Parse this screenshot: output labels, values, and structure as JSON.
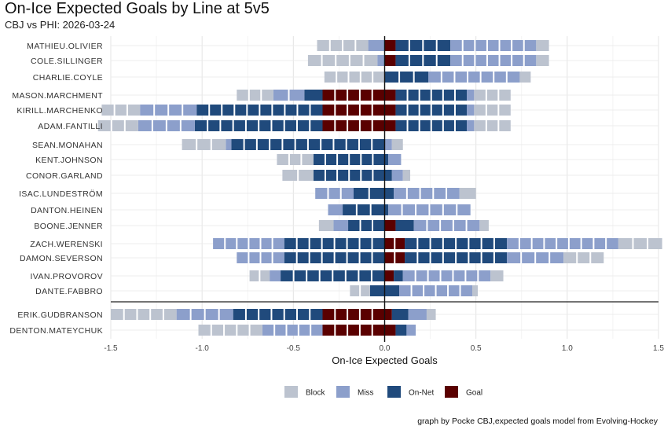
{
  "title": "On-Ice Expected Goals by Line at 5v5",
  "subtitle": "CBJ vs PHI: 2026-03-24",
  "caption": "graph by Pocke CBJ,expected goals model from Evolving-Hockey",
  "colors": {
    "Block": "#bcc3cf",
    "Miss": "#8c9fcb",
    "On-Net": "#204a7c",
    "Goal": "#5a0000"
  },
  "chart_data": {
    "type": "bar",
    "orientation": "horizontal",
    "stacked": true,
    "xlabel": "On-Ice Expected Goals",
    "xlim": [
      -1.5,
      1.5
    ],
    "xticks": [
      -1.5,
      -1.0,
      -0.5,
      0.0,
      0.5,
      1.0,
      1.5
    ],
    "xtick_labels": [
      "-1.5",
      "-1.0",
      "-0.5",
      "0.0",
      "0.5",
      "1.0",
      "1.5"
    ],
    "grid": true,
    "legend": {
      "position": "bottom",
      "entries": [
        "Block",
        "Miss",
        "On-Net",
        "Goal"
      ]
    },
    "players": [
      {
        "name": "MATHIEU.OLIVIER",
        "line": 1,
        "against": {
          "Goal": 0,
          "On-Net": 0,
          "Miss": 0.09,
          "Block": 0.28
        },
        "for": {
          "Goal": 0.06,
          "On-Net": 0.3,
          "Miss": 0.47,
          "Block": 0.07
        }
      },
      {
        "name": "COLE.SILLINGER",
        "line": 1,
        "against": {
          "Goal": 0,
          "On-Net": 0,
          "Miss": 0.04,
          "Block": 0.38
        },
        "for": {
          "Goal": 0.06,
          "On-Net": 0.3,
          "Miss": 0.47,
          "Block": 0.07
        }
      },
      {
        "name": "CHARLIE.COYLE",
        "line": 1,
        "against": {
          "Goal": 0,
          "On-Net": 0,
          "Miss": 0,
          "Block": 0.33
        },
        "for": {
          "Goal": 0,
          "On-Net": 0.24,
          "Miss": 0.5,
          "Block": 0.06
        }
      },
      {
        "name": "MASON.MARCHMENT",
        "line": 2,
        "against": {
          "Goal": 0.34,
          "On-Net": 0.1,
          "Miss": 0.17,
          "Block": 0.2
        },
        "for": {
          "Goal": 0.06,
          "On-Net": 0.39,
          "Miss": 0.04,
          "Block": 0.2
        }
      },
      {
        "name": "KIRILL.MARCHENKO",
        "line": 2,
        "against": {
          "Goal": 0.34,
          "On-Net": 0.69,
          "Miss": 0.31,
          "Block": 0.21
        },
        "for": {
          "Goal": 0.06,
          "On-Net": 0.39,
          "Miss": 0.04,
          "Block": 0.2
        }
      },
      {
        "name": "ADAM.FANTILLI",
        "line": 2,
        "against": {
          "Goal": 0.34,
          "On-Net": 0.7,
          "Miss": 0.31,
          "Block": 0.22
        },
        "for": {
          "Goal": 0.06,
          "On-Net": 0.39,
          "Miss": 0.04,
          "Block": 0.2
        }
      },
      {
        "name": "SEAN.MONAHAN",
        "line": 3,
        "against": {
          "Goal": 0,
          "On-Net": 0.84,
          "Miss": 0.03,
          "Block": 0.24
        },
        "for": {
          "Goal": 0,
          "On-Net": 0,
          "Miss": 0.04,
          "Block": 0.06
        }
      },
      {
        "name": "KENT.JOHNSON",
        "line": 3,
        "against": {
          "Goal": 0,
          "On-Net": 0.39,
          "Miss": 0,
          "Block": 0.2
        },
        "for": {
          "Goal": 0,
          "On-Net": 0.02,
          "Miss": 0.07,
          "Block": 0
        }
      },
      {
        "name": "CONOR.GARLAND",
        "line": 3,
        "against": {
          "Goal": 0,
          "On-Net": 0.39,
          "Miss": 0,
          "Block": 0.17
        },
        "for": {
          "Goal": 0,
          "On-Net": 0.04,
          "Miss": 0.06,
          "Block": 0.04
        }
      },
      {
        "name": "ISAC.LUNDESTRÖM",
        "line": 4,
        "against": {
          "Goal": 0,
          "On-Net": 0.17,
          "Miss": 0.21,
          "Block": 0
        },
        "for": {
          "Goal": 0,
          "On-Net": 0.05,
          "Miss": 0.36,
          "Block": 0.09
        }
      },
      {
        "name": "DANTON.HEINEN",
        "line": 4,
        "against": {
          "Goal": 0,
          "On-Net": 0.23,
          "Miss": 0.08,
          "Block": 0
        },
        "for": {
          "Goal": 0,
          "On-Net": 0.02,
          "Miss": 0.45,
          "Block": 0
        }
      },
      {
        "name": "BOONE.JENNER",
        "line": 4,
        "against": {
          "Goal": 0,
          "On-Net": 0.2,
          "Miss": 0.08,
          "Block": 0.08
        },
        "for": {
          "Goal": 0.06,
          "On-Net": 0.1,
          "Miss": 0.36,
          "Block": 0.05
        }
      },
      {
        "name": "ZACH.WERENSKI",
        "line": 5,
        "against": {
          "Goal": 0,
          "On-Net": 0.55,
          "Miss": 0.39,
          "Block": 0
        },
        "for": {
          "Goal": 0.11,
          "On-Net": 0.56,
          "Miss": 0.61,
          "Block": 0.24
        }
      },
      {
        "name": "DAMON.SEVERSON",
        "line": 5,
        "against": {
          "Goal": 0,
          "On-Net": 0.55,
          "Miss": 0.26,
          "Block": 0
        },
        "for": {
          "Goal": 0.11,
          "On-Net": 0.56,
          "Miss": 0.31,
          "Block": 0.22
        }
      },
      {
        "name": "IVAN.PROVOROV",
        "line": 6,
        "against": {
          "Goal": 0,
          "On-Net": 0.57,
          "Miss": 0.06,
          "Block": 0.11
        },
        "for": {
          "Goal": 0.05,
          "On-Net": 0.05,
          "Miss": 0.48,
          "Block": 0.07
        }
      },
      {
        "name": "DANTE.FABBRO",
        "line": 6,
        "against": {
          "Goal": 0,
          "On-Net": 0.08,
          "Miss": 0,
          "Block": 0.11
        },
        "for": {
          "Goal": 0,
          "On-Net": 0.08,
          "Miss": 0.4,
          "Block": 0.03
        }
      },
      {
        "name": "ERIK.GUDBRANSON",
        "line": 7,
        "against": {
          "Goal": 0.34,
          "On-Net": 0.49,
          "Miss": 0.31,
          "Block": 0.36
        },
        "for": {
          "Goal": 0.04,
          "On-Net": 0.09,
          "Miss": 0.1,
          "Block": 0.05
        }
      },
      {
        "name": "DENTON.MATEYCHUK",
        "line": 7,
        "against": {
          "Goal": 0.34,
          "On-Net": 0,
          "Miss": 0.33,
          "Block": 0.35
        },
        "for": {
          "Goal": 0.06,
          "On-Net": 0.06,
          "Miss": 0.05,
          "Block": 0
        }
      }
    ]
  }
}
